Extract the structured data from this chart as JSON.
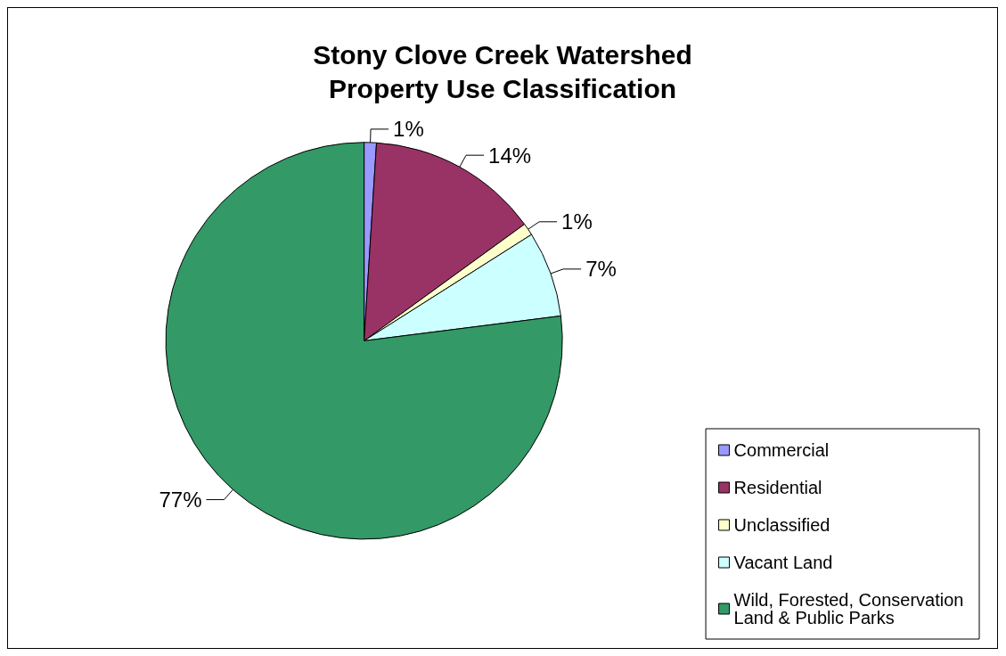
{
  "chart_data": {
    "type": "pie",
    "title": "Stony Clove Creek Watershed\nProperty Use Classification",
    "categories": [
      "Commercial",
      "Residential",
      "Unclassified",
      "Vacant Land",
      "Wild, Forested, Conservation Land & Public Parks"
    ],
    "values": [
      1,
      14,
      1,
      7,
      77
    ],
    "value_labels": [
      "1%",
      "14%",
      "1%",
      "7%",
      "77%"
    ],
    "colors": [
      "#9999ff",
      "#993366",
      "#ffffcc",
      "#ccffff",
      "#339966"
    ],
    "legend": "bottom right"
  }
}
